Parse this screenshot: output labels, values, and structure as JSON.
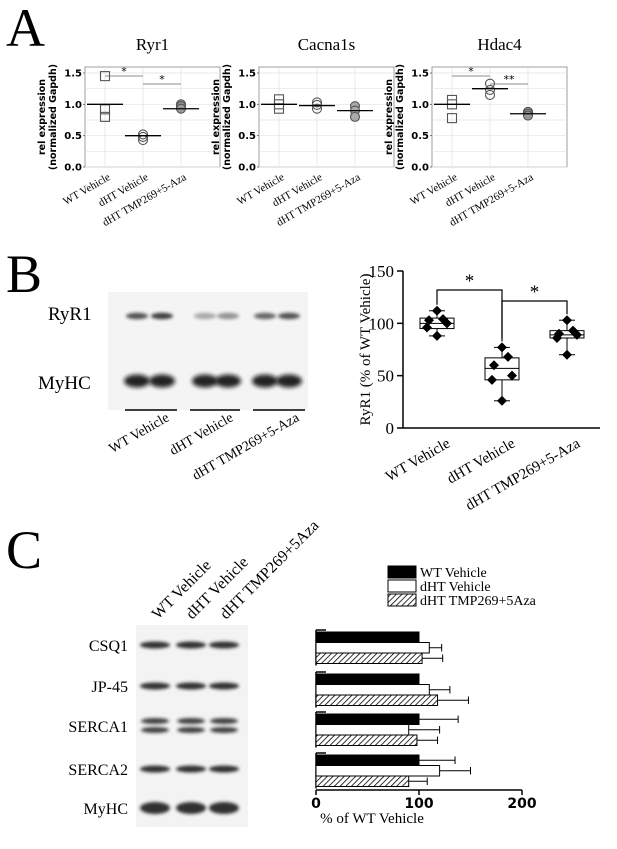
{
  "panels": {
    "A": {
      "letter": "A",
      "ylabel_line1": "rel expression",
      "ylabel_line2": "(normalized Gapdh)",
      "categories": [
        "WT Vehicle",
        "dHT Vehicle",
        "dHT TMP269+5-Aza"
      ],
      "ylim": [
        0,
        1.5
      ],
      "yticks": [
        "0.0",
        "0.5",
        "1.0",
        "1.5"
      ],
      "grid": true
    },
    "B": {
      "letter": "B",
      "blot_rows": [
        "RyR1",
        "MyHC"
      ],
      "blot_groups": [
        "WT Vehicle",
        "dHT Vehicle",
        "dHT TMP269+5-Aza"
      ]
    },
    "C": {
      "letter": "C",
      "blot_rows": [
        "CSQ1",
        "JP-45",
        "SERCA1",
        "SERCA2",
        "MyHC"
      ],
      "lane_labels": [
        "WT Vehicle",
        "dHT Vehicle",
        "dHT TMP269+5Aza"
      ],
      "legend": [
        "WT Vehicle",
        "dHT Vehicle",
        "dHT TMP269+5Aza"
      ]
    }
  },
  "chart_data": [
    {
      "type": "scatter",
      "title": "Ryr1",
      "ylabel": "rel expression (normalized Gapdh)",
      "categories": [
        "WT Vehicle",
        "dHT Vehicle",
        "dHT TMP269+5-Aza"
      ],
      "ylim": [
        0,
        1.5
      ],
      "series": [
        {
          "values": [
            [
              1.45,
              0.92,
              0.8
            ],
            [
              0.52,
              0.48,
              0.43
            ],
            [
              1.0,
              0.97,
              0.93
            ]
          ]
        }
      ],
      "means": [
        1.0,
        0.5,
        0.93
      ],
      "markers": [
        "square",
        "circle",
        "circle"
      ],
      "significance": [
        {
          "from": 0,
          "to": 1,
          "label": "*"
        },
        {
          "from": 1,
          "to": 2,
          "label": "*"
        }
      ]
    },
    {
      "type": "scatter",
      "title": "Cacna1s",
      "ylabel": "rel expression (normalized Gapdh)",
      "categories": [
        "WT Vehicle",
        "dHT Vehicle",
        "dHT TMP269+5-Aza"
      ],
      "ylim": [
        0,
        1.5
      ],
      "series": [
        {
          "values": [
            [
              1.08,
              1.0,
              0.93
            ],
            [
              1.03,
              0.99,
              0.93
            ],
            [
              0.97,
              0.9,
              0.8
            ]
          ]
        }
      ],
      "means": [
        1.0,
        0.98,
        0.9
      ],
      "markers": [
        "square",
        "circle",
        "circle"
      ],
      "significance": []
    },
    {
      "type": "scatter",
      "title": "Hdac4",
      "ylabel": "rel expression (normalized Gapdh)",
      "categories": [
        "WT Vehicle",
        "dHT Vehicle",
        "dHT TMP269+5-Aza"
      ],
      "ylim": [
        0,
        1.5
      ],
      "series": [
        {
          "values": [
            [
              1.07,
              1.0,
              0.78
            ],
            [
              1.33,
              1.23,
              1.15
            ],
            [
              0.88,
              0.85,
              0.82
            ]
          ]
        }
      ],
      "means": [
        1.0,
        1.25,
        0.85
      ],
      "markers": [
        "square",
        "circle",
        "circle"
      ],
      "significance": [
        {
          "from": 0,
          "to": 1,
          "label": "*"
        },
        {
          "from": 1,
          "to": 2,
          "label": "**"
        }
      ]
    },
    {
      "type": "box",
      "ylabel": "RyR1 (% of WT Vehicle)",
      "categories": [
        "WT Vehicle",
        "dHT Vehicle",
        "dHT TMP269+5-Aza"
      ],
      "ylim": [
        0,
        150
      ],
      "yticks": [
        "0",
        "50",
        "100",
        "150"
      ],
      "boxes": [
        {
          "min": 88,
          "q1": 95,
          "median": 100,
          "q3": 105,
          "max": 112
        },
        {
          "min": 26,
          "q1": 46,
          "median": 57,
          "q3": 67,
          "max": 77
        },
        {
          "min": 70,
          "q1": 86,
          "median": 89,
          "q3": 93,
          "max": 103
        }
      ],
      "points": [
        [
          112,
          104,
          103,
          100,
          96,
          88
        ],
        [
          77,
          68,
          60,
          50,
          46,
          26
        ],
        [
          103,
          93,
          90,
          89,
          86,
          70
        ]
      ],
      "significance": [
        {
          "from": 0,
          "to": 1,
          "label": "*"
        },
        {
          "from": 1,
          "to": 2,
          "label": "*"
        }
      ]
    },
    {
      "type": "bar",
      "orientation": "horizontal",
      "xlabel": "% of  WT Vehicle",
      "xlim": [
        0,
        200
      ],
      "xticks": [
        "0",
        "100",
        "200"
      ],
      "categories": [
        "CSQ1",
        "JP-45",
        "SERCA1",
        "SERCA2"
      ],
      "series": [
        {
          "name": "WT Vehicle",
          "values": [
            100,
            100,
            100,
            100
          ],
          "errors": [
            0,
            0,
            38,
            35
          ],
          "fill": "#000000"
        },
        {
          "name": "dHT Vehicle",
          "values": [
            110,
            110,
            90,
            120
          ],
          "errors": [
            12,
            20,
            30,
            30
          ],
          "fill": "#ffffff"
        },
        {
          "name": "dHT TMP269+5Aza",
          "values": [
            103,
            118,
            98,
            90
          ],
          "errors": [
            20,
            30,
            20,
            18
          ],
          "fill": "hatch"
        }
      ]
    }
  ]
}
